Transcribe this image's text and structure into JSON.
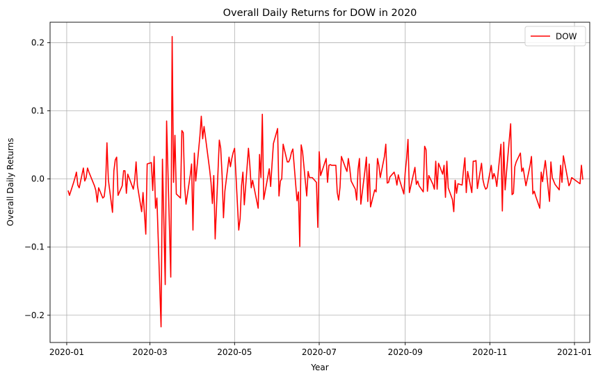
{
  "chart_data": {
    "type": "line",
    "title": "Overall Daily Returns for DOW in 2020",
    "xlabel": "Year",
    "ylabel": "Overall Daily Returns",
    "xlim": [
      "2019-12-20",
      "2021-01-12"
    ],
    "ylim": [
      -0.24,
      0.23
    ],
    "x_ticks": [
      "2020-01",
      "2020-03",
      "2020-05",
      "2020-07",
      "2020-09",
      "2020-11",
      "2021-01"
    ],
    "y_ticks": [
      -0.2,
      -0.1,
      0.0,
      0.1,
      0.2
    ],
    "y_tick_labels": [
      "−0.2",
      "−0.1",
      "0.0",
      "0.1",
      "0.2"
    ],
    "grid": true,
    "legend_position": "top-right",
    "series": [
      {
        "name": "DOW",
        "color": "#ff0000",
        "points": [
          [
            "2020-01-02",
            -0.017
          ],
          [
            "2020-01-03",
            -0.024
          ],
          [
            "2020-01-06",
            -0.005
          ],
          [
            "2020-01-07",
            0.002
          ],
          [
            "2020-01-08",
            0.01
          ],
          [
            "2020-01-09",
            -0.009
          ],
          [
            "2020-01-10",
            -0.013
          ],
          [
            "2020-01-13",
            0.016
          ],
          [
            "2020-01-14",
            -0.003
          ],
          [
            "2020-01-15",
            0.002
          ],
          [
            "2020-01-16",
            0.016
          ],
          [
            "2020-01-17",
            0.01
          ],
          [
            "2020-01-21",
            -0.01
          ],
          [
            "2020-01-22",
            -0.017
          ],
          [
            "2020-01-23",
            -0.034
          ],
          [
            "2020-01-24",
            -0.013
          ],
          [
            "2020-01-27",
            -0.028
          ],
          [
            "2020-01-28",
            -0.026
          ],
          [
            "2020-01-29",
            -0.009
          ],
          [
            "2020-01-30",
            0.053
          ],
          [
            "2020-01-31",
            -0.001
          ],
          [
            "2020-02-03",
            -0.049
          ],
          [
            "2020-02-04",
            0.012
          ],
          [
            "2020-02-05",
            0.028
          ],
          [
            "2020-02-06",
            0.032
          ],
          [
            "2020-02-07",
            -0.024
          ],
          [
            "2020-02-10",
            -0.01
          ],
          [
            "2020-02-11",
            0.012
          ],
          [
            "2020-02-12",
            0.012
          ],
          [
            "2020-02-13",
            -0.021
          ],
          [
            "2020-02-14",
            0.007
          ],
          [
            "2020-02-18",
            -0.015
          ],
          [
            "2020-02-19",
            -0.002
          ],
          [
            "2020-02-20",
            0.025
          ],
          [
            "2020-02-21",
            -0.01
          ],
          [
            "2020-02-24",
            -0.048
          ],
          [
            "2020-02-25",
            -0.02
          ],
          [
            "2020-02-26",
            -0.05
          ],
          [
            "2020-02-27",
            -0.081
          ],
          [
            "2020-02-28",
            0.022
          ],
          [
            "2020-03-02",
            0.024
          ],
          [
            "2020-03-03",
            -0.017
          ],
          [
            "2020-03-04",
            0.033
          ],
          [
            "2020-03-05",
            -0.043
          ],
          [
            "2020-03-06",
            -0.028
          ],
          [
            "2020-03-09",
            -0.217
          ],
          [
            "2020-03-10",
            0.029
          ],
          [
            "2020-03-11",
            -0.06
          ],
          [
            "2020-03-12",
            -0.155
          ],
          [
            "2020-03-13",
            0.085
          ],
          [
            "2020-03-16",
            -0.144
          ],
          [
            "2020-03-17",
            0.209
          ],
          [
            "2020-03-18",
            -0.005
          ],
          [
            "2020-03-19",
            0.064
          ],
          [
            "2020-03-20",
            -0.022
          ],
          [
            "2020-03-23",
            -0.028
          ],
          [
            "2020-03-24",
            0.071
          ],
          [
            "2020-03-25",
            0.068
          ],
          [
            "2020-03-26",
            -0.011
          ],
          [
            "2020-03-27",
            -0.037
          ],
          [
            "2020-03-30",
            0.005
          ],
          [
            "2020-03-31",
            0.022
          ],
          [
            "2020-04-01",
            -0.075
          ],
          [
            "2020-04-02",
            0.038
          ],
          [
            "2020-04-03",
            -0.003
          ],
          [
            "2020-04-06",
            0.063
          ],
          [
            "2020-04-07",
            0.092
          ],
          [
            "2020-04-08",
            0.059
          ],
          [
            "2020-04-09",
            0.077
          ],
          [
            "2020-04-13",
            0.014
          ],
          [
            "2020-04-14",
            -0.005
          ],
          [
            "2020-04-15",
            -0.036
          ],
          [
            "2020-04-16",
            0.005
          ],
          [
            "2020-04-17",
            -0.088
          ],
          [
            "2020-04-20",
            0.057
          ],
          [
            "2020-04-21",
            0.045
          ],
          [
            "2020-04-22",
            0.005
          ],
          [
            "2020-04-23",
            -0.057
          ],
          [
            "2020-04-24",
            -0.018
          ],
          [
            "2020-04-27",
            0.032
          ],
          [
            "2020-04-28",
            0.018
          ],
          [
            "2020-04-29",
            0.03
          ],
          [
            "2020-04-30",
            0.039
          ],
          [
            "2020-05-01",
            0.045
          ],
          [
            "2020-05-04",
            -0.075
          ],
          [
            "2020-05-05",
            -0.058
          ],
          [
            "2020-05-06",
            -0.01
          ],
          [
            "2020-05-07",
            0.01
          ],
          [
            "2020-05-08",
            -0.038
          ],
          [
            "2020-05-11",
            0.045
          ],
          [
            "2020-05-12",
            0.02
          ],
          [
            "2020-05-13",
            -0.013
          ],
          [
            "2020-05-14",
            -0.002
          ],
          [
            "2020-05-15",
            -0.012
          ],
          [
            "2020-05-18",
            -0.043
          ],
          [
            "2020-05-19",
            0.036
          ],
          [
            "2020-05-20",
            0.002
          ],
          [
            "2020-05-21",
            0.095
          ],
          [
            "2020-05-22",
            -0.03
          ],
          [
            "2020-05-26",
            0.015
          ],
          [
            "2020-05-27",
            -0.011
          ],
          [
            "2020-05-28",
            0.022
          ],
          [
            "2020-05-29",
            0.052
          ],
          [
            "2020-06-01",
            0.074
          ],
          [
            "2020-06-02",
            -0.025
          ],
          [
            "2020-06-03",
            -0.003
          ],
          [
            "2020-06-04",
            0.0
          ],
          [
            "2020-06-05",
            0.051
          ],
          [
            "2020-06-08",
            0.025
          ],
          [
            "2020-06-09",
            0.025
          ],
          [
            "2020-06-10",
            0.03
          ],
          [
            "2020-06-11",
            0.039
          ],
          [
            "2020-06-12",
            0.044
          ],
          [
            "2020-06-15",
            -0.032
          ],
          [
            "2020-06-16",
            -0.019
          ],
          [
            "2020-06-17",
            -0.099
          ],
          [
            "2020-06-18",
            0.05
          ],
          [
            "2020-06-19",
            0.04
          ],
          [
            "2020-06-22",
            -0.025
          ],
          [
            "2020-06-23",
            0.011
          ],
          [
            "2020-06-24",
            0.002
          ],
          [
            "2020-06-25",
            0.002
          ],
          [
            "2020-06-26",
            0.002
          ],
          [
            "2020-06-29",
            -0.005
          ],
          [
            "2020-06-30",
            -0.071
          ],
          [
            "2020-07-01",
            0.04
          ],
          [
            "2020-07-02",
            0.005
          ],
          [
            "2020-07-06",
            0.03
          ],
          [
            "2020-07-07",
            -0.005
          ],
          [
            "2020-07-08",
            0.02
          ],
          [
            "2020-07-09",
            0.021
          ],
          [
            "2020-07-10",
            0.02
          ],
          [
            "2020-07-13",
            0.02
          ],
          [
            "2020-07-14",
            -0.02
          ],
          [
            "2020-07-15",
            -0.031
          ],
          [
            "2020-07-16",
            -0.012
          ],
          [
            "2020-07-17",
            0.033
          ],
          [
            "2020-07-20",
            0.016
          ],
          [
            "2020-07-21",
            0.011
          ],
          [
            "2020-07-22",
            0.03
          ],
          [
            "2020-07-23",
            0.016
          ],
          [
            "2020-07-24",
            -0.003
          ],
          [
            "2020-07-27",
            -0.015
          ],
          [
            "2020-07-28",
            -0.031
          ],
          [
            "2020-07-29",
            0.014
          ],
          [
            "2020-07-30",
            0.03
          ],
          [
            "2020-07-31",
            -0.037
          ],
          [
            "2020-08-03",
            0.013
          ],
          [
            "2020-08-04",
            0.032
          ],
          [
            "2020-08-05",
            -0.033
          ],
          [
            "2020-08-06",
            0.022
          ],
          [
            "2020-08-07",
            -0.041
          ],
          [
            "2020-08-10",
            -0.016
          ],
          [
            "2020-08-11",
            -0.019
          ],
          [
            "2020-08-12",
            0.03
          ],
          [
            "2020-08-13",
            0.02
          ],
          [
            "2020-08-14",
            0.002
          ],
          [
            "2020-08-17",
            0.033
          ],
          [
            "2020-08-18",
            0.051
          ],
          [
            "2020-08-19",
            -0.006
          ],
          [
            "2020-08-20",
            -0.005
          ],
          [
            "2020-08-21",
            0.003
          ],
          [
            "2020-08-24",
            0.01
          ],
          [
            "2020-08-25",
            0.003
          ],
          [
            "2020-08-26",
            -0.009
          ],
          [
            "2020-08-27",
            0.006
          ],
          [
            "2020-08-28",
            -0.002
          ],
          [
            "2020-08-31",
            -0.022
          ],
          [
            "2020-09-01",
            0.01
          ],
          [
            "2020-09-02",
            0.03
          ],
          [
            "2020-09-03",
            0.058
          ],
          [
            "2020-09-04",
            -0.02
          ],
          [
            "2020-09-08",
            0.017
          ],
          [
            "2020-09-09",
            -0.008
          ],
          [
            "2020-09-10",
            -0.003
          ],
          [
            "2020-09-11",
            -0.01
          ],
          [
            "2020-09-14",
            -0.019
          ],
          [
            "2020-09-15",
            0.048
          ],
          [
            "2020-09-16",
            0.043
          ],
          [
            "2020-09-17",
            -0.018
          ],
          [
            "2020-09-18",
            0.005
          ],
          [
            "2020-09-21",
            -0.008
          ],
          [
            "2020-09-22",
            -0.015
          ],
          [
            "2020-09-23",
            0.026
          ],
          [
            "2020-09-24",
            -0.015
          ],
          [
            "2020-09-25",
            0.023
          ],
          [
            "2020-09-28",
            0.007
          ],
          [
            "2020-09-29",
            0.02
          ],
          [
            "2020-09-30",
            -0.027
          ],
          [
            "2020-10-01",
            0.026
          ],
          [
            "2020-10-02",
            -0.013
          ],
          [
            "2020-10-05",
            -0.03
          ],
          [
            "2020-10-06",
            -0.048
          ],
          [
            "2020-10-07",
            -0.002
          ],
          [
            "2020-10-08",
            -0.021
          ],
          [
            "2020-10-09",
            -0.007
          ],
          [
            "2020-10-12",
            -0.009
          ],
          [
            "2020-10-13",
            0.013
          ],
          [
            "2020-10-14",
            0.031
          ],
          [
            "2020-10-15",
            -0.02
          ],
          [
            "2020-10-16",
            0.011
          ],
          [
            "2020-10-19",
            -0.02
          ],
          [
            "2020-10-20",
            0.026
          ],
          [
            "2020-10-21",
            0.026
          ],
          [
            "2020-10-22",
            0.027
          ],
          [
            "2020-10-23",
            -0.014
          ],
          [
            "2020-10-26",
            0.023
          ],
          [
            "2020-10-27",
            -0.001
          ],
          [
            "2020-10-28",
            -0.01
          ],
          [
            "2020-10-29",
            -0.015
          ],
          [
            "2020-10-30",
            -0.013
          ],
          [
            "2020-11-02",
            0.02
          ],
          [
            "2020-11-03",
            0.0
          ],
          [
            "2020-11-04",
            0.008
          ],
          [
            "2020-11-05",
            0.002
          ],
          [
            "2020-11-06",
            -0.011
          ],
          [
            "2020-11-09",
            0.051
          ],
          [
            "2020-11-10",
            -0.047
          ],
          [
            "2020-11-11",
            0.054
          ],
          [
            "2020-11-12",
            -0.016
          ],
          [
            "2020-11-13",
            0.01
          ],
          [
            "2020-11-16",
            0.081
          ],
          [
            "2020-11-17",
            -0.023
          ],
          [
            "2020-11-18",
            -0.021
          ],
          [
            "2020-11-19",
            0.018
          ],
          [
            "2020-11-20",
            0.025
          ],
          [
            "2020-11-23",
            0.038
          ],
          [
            "2020-11-24",
            0.011
          ],
          [
            "2020-11-25",
            0.016
          ],
          [
            "2020-11-27",
            -0.01
          ],
          [
            "2020-11-30",
            0.02
          ],
          [
            "2020-12-01",
            0.033
          ],
          [
            "2020-12-02",
            -0.022
          ],
          [
            "2020-12-03",
            -0.018
          ],
          [
            "2020-12-04",
            -0.025
          ],
          [
            "2020-12-07",
            -0.043
          ],
          [
            "2020-12-08",
            0.01
          ],
          [
            "2020-12-09",
            -0.004
          ],
          [
            "2020-12-10",
            0.013
          ],
          [
            "2020-12-11",
            0.027
          ],
          [
            "2020-12-14",
            -0.033
          ],
          [
            "2020-12-15",
            0.025
          ],
          [
            "2020-12-16",
            0.002
          ],
          [
            "2020-12-17",
            -0.003
          ],
          [
            "2020-12-18",
            -0.008
          ],
          [
            "2020-12-21",
            -0.016
          ],
          [
            "2020-12-22",
            0.02
          ],
          [
            "2020-12-23",
            -0.005
          ],
          [
            "2020-12-24",
            0.034
          ],
          [
            "2020-12-28",
            -0.01
          ],
          [
            "2020-12-29",
            -0.006
          ],
          [
            "2020-12-30",
            0.002
          ],
          [
            "2021-01-05",
            -0.007
          ],
          [
            "2021-01-06",
            0.02
          ],
          [
            "2021-01-07",
            -0.001
          ]
        ]
      }
    ]
  }
}
